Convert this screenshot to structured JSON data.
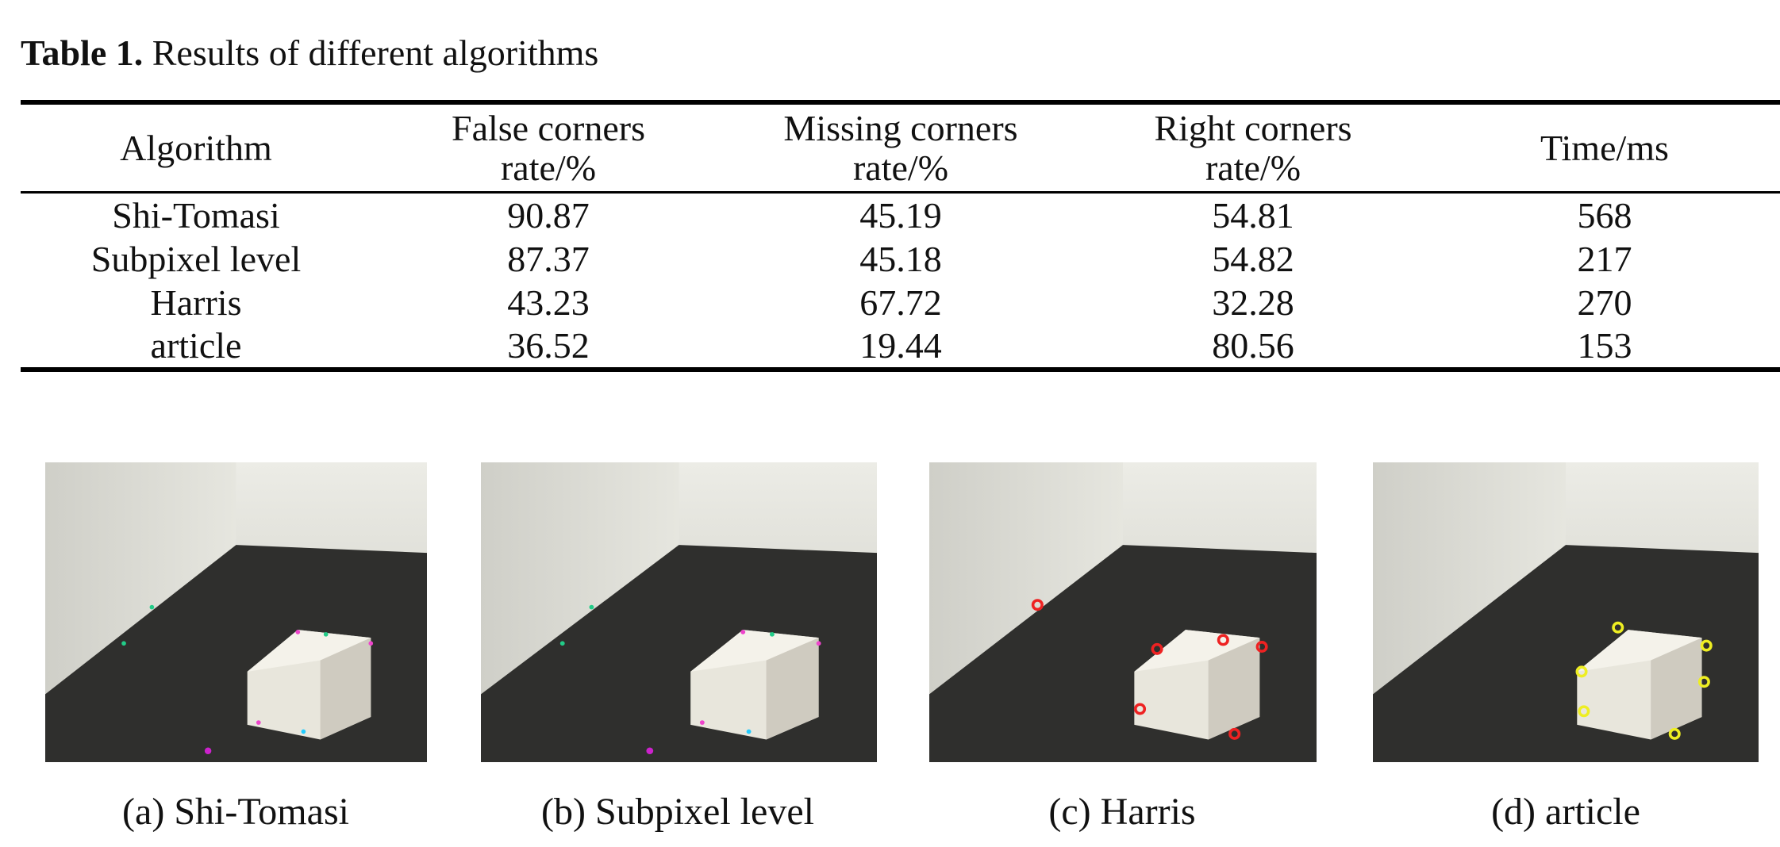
{
  "caption": {
    "label": "Table 1.",
    "text": "Results of different algorithms"
  },
  "table": {
    "headers": [
      "Algorithm",
      "False corners rate/%",
      "Missing corners rate/%",
      "Right corners rate/%",
      "Time/ms"
    ],
    "rows": [
      [
        "Shi-Tomasi",
        "90.87",
        "45.19",
        "54.81",
        "568"
      ],
      [
        "Subpixel level",
        "87.37",
        "45.18",
        "54.82",
        "217"
      ],
      [
        "Harris",
        "43.23",
        "67.72",
        "32.28",
        "270"
      ],
      [
        "article",
        "36.52",
        "19.44",
        "80.56",
        "153"
      ]
    ]
  },
  "figures": [
    {
      "caption": "(a) Shi-Tomasi"
    },
    {
      "caption": "(b) Subpixel level"
    },
    {
      "caption": "(c) Harris"
    },
    {
      "caption": "(d) article"
    }
  ]
}
